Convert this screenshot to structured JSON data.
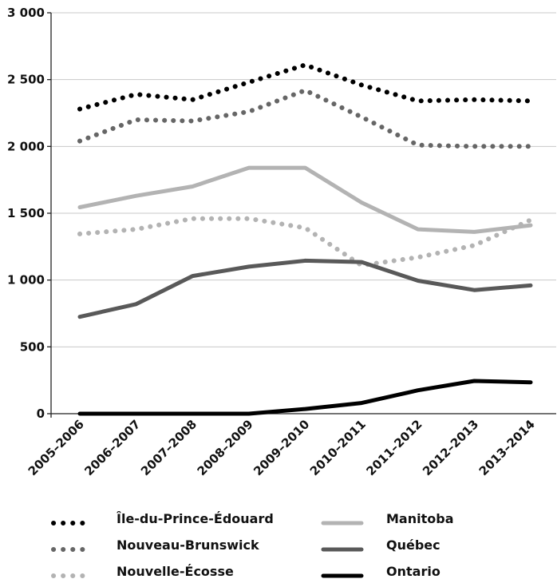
{
  "chart_data": {
    "type": "line",
    "categories": [
      "2005–2006",
      "2006–2007",
      "2007–2008",
      "2008–2009",
      "2009–2010",
      "2010–2011",
      "2011–2012",
      "2012–2013",
      "2013–2014"
    ],
    "yticks": [
      "0",
      "500",
      "1 000",
      "1 500",
      "2 000",
      "2 500",
      "3 000"
    ],
    "ylim": [
      0,
      3000
    ],
    "grid": true,
    "legend_position": "bottom",
    "series": [
      {
        "name": "Île-du-Prince-Édouard",
        "values": [
          2280,
          2390,
          2350,
          2480,
          2610,
          2460,
          2340,
          2350,
          2340
        ],
        "color": "#000000",
        "style": "dotted"
      },
      {
        "name": "Nouveau-Brunswick",
        "values": [
          2040,
          2200,
          2190,
          2260,
          2420,
          2220,
          2010,
          2000,
          2000
        ],
        "color": "#666666",
        "style": "dotted"
      },
      {
        "name": "Nouvelle-Écosse",
        "values": [
          1345,
          1380,
          1460,
          1460,
          1390,
          1110,
          1170,
          1260,
          1450
        ],
        "color": "#b3b3b3",
        "style": "dotted"
      },
      {
        "name": "Manitoba",
        "values": [
          1545,
          1630,
          1700,
          1840,
          1840,
          1580,
          1380,
          1360,
          1410
        ],
        "color": "#b3b3b3",
        "style": "solid"
      },
      {
        "name": "Québec",
        "values": [
          725,
          820,
          1030,
          1100,
          1145,
          1135,
          995,
          925,
          960
        ],
        "color": "#595959",
        "style": "solid"
      },
      {
        "name": "Ontario",
        "values": [
          0,
          0,
          0,
          0,
          35,
          80,
          175,
          245,
          235
        ],
        "color": "#000000",
        "style": "solid"
      }
    ]
  }
}
